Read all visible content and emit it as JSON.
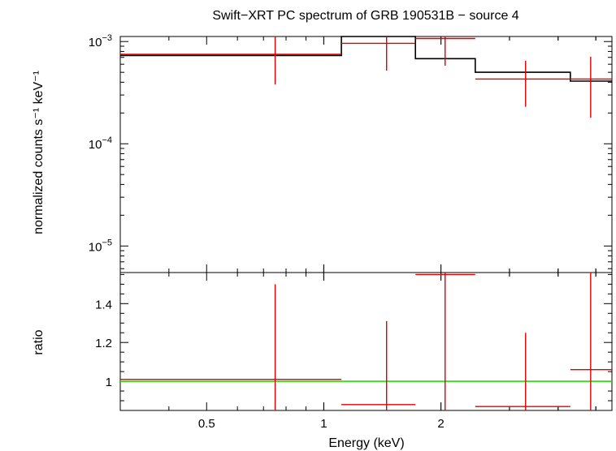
{
  "title": "Swift−XRT PC spectrum of GRB 190531B − source 4",
  "colors": {
    "data": "#e00000",
    "model": "#000000",
    "unity": "#22dd00",
    "axes": "#000000"
  },
  "chart_data": [
    {
      "type": "line",
      "panel": "spectrum",
      "xlabel": "Energy (keV)",
      "ylabel": "normalized counts s⁻¹ keV⁻¹",
      "xscale": "log",
      "yscale": "log",
      "xlim": [
        0.3,
        5.5
      ],
      "ylim": [
        5.5e-06,
        0.00112
      ],
      "ytick_labels": [
        {
          "value": 0.001,
          "base": "10",
          "exp": "−3"
        },
        {
          "value": 0.0001,
          "base": "10",
          "exp": "−4"
        },
        {
          "value": 1e-05,
          "base": "10",
          "exp": "−5"
        }
      ],
      "series": [
        {
          "kind": "data",
          "points": [
            {
              "x": 0.75,
              "xlo": 0.3,
              "xhi": 1.11,
              "y": 0.00075,
              "ylo": 0.00038,
              "yhi": 0.00112
            },
            {
              "x": 1.45,
              "xlo": 1.11,
              "xhi": 1.72,
              "y": 0.00096,
              "ylo": 0.00052,
              "yhi": 0.00112
            },
            {
              "x": 2.05,
              "xlo": 1.72,
              "xhi": 2.45,
              "y": 0.00107,
              "ylo": 0.00058,
              "yhi": 0.00112
            },
            {
              "x": 3.3,
              "xlo": 2.45,
              "xhi": 4.3,
              "y": 0.00043,
              "ylo": 0.00023,
              "yhi": 0.00065
            },
            {
              "x": 4.85,
              "xlo": 4.3,
              "xhi": 5.5,
              "y": 0.00043,
              "ylo": 0.00018,
              "yhi": 0.00071
            }
          ]
        },
        {
          "kind": "model",
          "steps": [
            {
              "xlo": 0.3,
              "xhi": 1.11,
              "y": 0.00073
            },
            {
              "xlo": 1.11,
              "xhi": 1.72,
              "y": 0.00112
            },
            {
              "xlo": 1.72,
              "xhi": 2.45,
              "y": 0.00068
            },
            {
              "xlo": 2.45,
              "xhi": 4.3,
              "y": 0.0005
            },
            {
              "xlo": 4.3,
              "xhi": 5.5,
              "y": 0.00041
            }
          ]
        }
      ]
    },
    {
      "type": "line",
      "panel": "ratio",
      "xlabel": "Energy (keV)",
      "ylabel": "ratio",
      "xscale": "log",
      "xlim": [
        0.3,
        5.5
      ],
      "ylim": [
        0.85,
        1.56
      ],
      "xticks": [
        0.5,
        1,
        2
      ],
      "xtick_labels": [
        "0.5",
        "1",
        "2"
      ],
      "yticks": [
        1,
        1.2,
        1.4
      ],
      "ytick_labels": [
        "1",
        "1.2",
        "1.4"
      ],
      "unity_line": 1,
      "series": [
        {
          "kind": "ratio",
          "points": [
            {
              "x": 0.75,
              "xlo": 0.3,
              "xhi": 1.11,
              "y": 1.01,
              "ylo": 0.85,
              "yhi": 1.5
            },
            {
              "x": 1.45,
              "xlo": 1.11,
              "xhi": 1.72,
              "y": 0.88,
              "ylo": 0.85,
              "yhi": 1.31
            },
            {
              "x": 2.05,
              "xlo": 1.72,
              "xhi": 2.45,
              "y": 1.55,
              "ylo": 0.85,
              "yhi": 1.56
            },
            {
              "x": 3.3,
              "xlo": 2.45,
              "xhi": 4.3,
              "y": 0.87,
              "ylo": 0.85,
              "yhi": 1.25
            },
            {
              "x": 4.85,
              "xlo": 4.3,
              "xhi": 5.5,
              "y": 1.06,
              "ylo": 0.85,
              "yhi": 1.56
            }
          ]
        }
      ]
    }
  ]
}
